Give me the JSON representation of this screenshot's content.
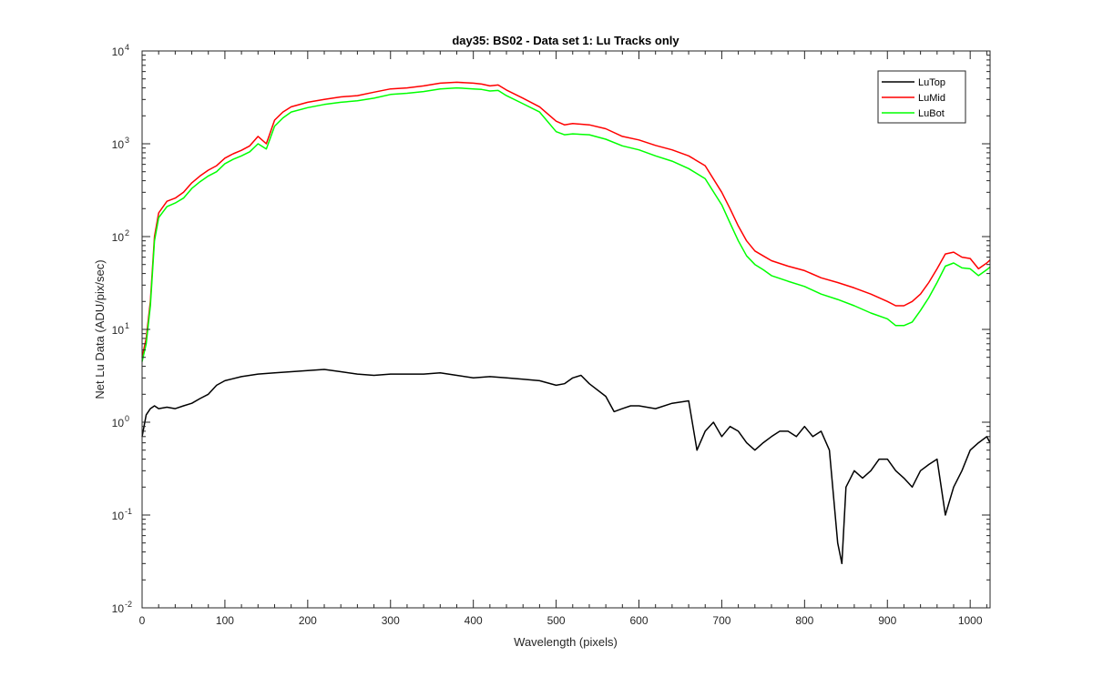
{
  "chart_data": {
    "type": "line",
    "title": "day35: BS02 - Data set 1: Lu Tracks only",
    "xlabel": "Wavelength (pixels)",
    "ylabel": "Net Lu Data (ADU/pix/sec)",
    "xlim": [
      0,
      1024
    ],
    "ylim": [
      0.01,
      10000
    ],
    "yscale": "log",
    "grid": false,
    "legend_position": "top-right",
    "x_ticks": [
      "0",
      "100",
      "200",
      "300",
      "400",
      "500",
      "600",
      "700",
      "800",
      "900",
      "1000"
    ],
    "y_ticks": [
      {
        "base": "10",
        "exp": "-2"
      },
      {
        "base": "10",
        "exp": "-1"
      },
      {
        "base": "10",
        "exp": "0"
      },
      {
        "base": "10",
        "exp": "1"
      },
      {
        "base": "10",
        "exp": "2"
      },
      {
        "base": "10",
        "exp": "3"
      },
      {
        "base": "10",
        "exp": "4"
      }
    ],
    "series": [
      {
        "name": "LuTop",
        "color": "#000000",
        "x": [
          0,
          5,
          10,
          15,
          20,
          30,
          40,
          50,
          60,
          70,
          80,
          90,
          100,
          120,
          140,
          160,
          180,
          200,
          220,
          240,
          260,
          280,
          300,
          320,
          340,
          360,
          380,
          400,
          420,
          440,
          460,
          480,
          500,
          510,
          520,
          530,
          540,
          560,
          570,
          580,
          590,
          600,
          620,
          640,
          660,
          670,
          680,
          690,
          700,
          710,
          720,
          730,
          740,
          750,
          760,
          770,
          780,
          790,
          800,
          810,
          820,
          830,
          840,
          845,
          850,
          860,
          870,
          880,
          890,
          900,
          910,
          920,
          930,
          940,
          950,
          960,
          970,
          980,
          990,
          1000,
          1010,
          1020,
          1024
        ],
        "y": [
          0.7,
          1.2,
          1.4,
          1.5,
          1.4,
          1.45,
          1.4,
          1.5,
          1.6,
          1.8,
          2.0,
          2.5,
          2.8,
          3.1,
          3.3,
          3.4,
          3.5,
          3.6,
          3.7,
          3.5,
          3.3,
          3.2,
          3.3,
          3.3,
          3.3,
          3.4,
          3.2,
          3.0,
          3.1,
          3.0,
          2.9,
          2.8,
          2.5,
          2.6,
          3.0,
          3.2,
          2.6,
          1.9,
          1.3,
          1.4,
          1.5,
          1.5,
          1.4,
          1.6,
          1.7,
          0.5,
          0.8,
          1.0,
          0.7,
          0.9,
          0.8,
          0.6,
          0.5,
          0.6,
          0.7,
          0.8,
          0.8,
          0.7,
          0.9,
          0.7,
          0.8,
          0.5,
          0.05,
          0.03,
          0.2,
          0.3,
          0.25,
          0.3,
          0.4,
          0.4,
          0.3,
          0.25,
          0.2,
          0.3,
          0.35,
          0.4,
          0.1,
          0.2,
          0.3,
          0.5,
          0.6,
          0.7,
          0.6
        ]
      },
      {
        "name": "LuMid",
        "color": "#ff0000",
        "x": [
          0,
          5,
          10,
          15,
          20,
          30,
          40,
          50,
          60,
          70,
          80,
          90,
          100,
          110,
          120,
          130,
          140,
          150,
          160,
          170,
          180,
          200,
          220,
          240,
          260,
          280,
          300,
          320,
          340,
          360,
          380,
          400,
          410,
          420,
          430,
          440,
          460,
          480,
          500,
          510,
          520,
          540,
          560,
          580,
          600,
          620,
          640,
          660,
          680,
          700,
          710,
          720,
          730,
          740,
          750,
          760,
          780,
          800,
          820,
          840,
          860,
          880,
          900,
          910,
          920,
          930,
          940,
          950,
          960,
          970,
          980,
          990,
          1000,
          1010,
          1020,
          1024
        ],
        "y": [
          5,
          8,
          20,
          100,
          180,
          240,
          260,
          300,
          380,
          450,
          520,
          580,
          700,
          780,
          850,
          950,
          1200,
          1000,
          1800,
          2200,
          2500,
          2800,
          3000,
          3200,
          3300,
          3600,
          3900,
          4000,
          4200,
          4500,
          4600,
          4500,
          4400,
          4200,
          4300,
          3800,
          3100,
          2500,
          1750,
          1600,
          1650,
          1600,
          1450,
          1200,
          1100,
          960,
          860,
          740,
          580,
          300,
          200,
          130,
          90,
          70,
          62,
          55,
          48,
          43,
          36,
          32,
          28,
          24,
          20,
          18,
          18,
          20,
          24,
          32,
          45,
          65,
          68,
          60,
          58,
          45,
          52,
          56
        ]
      },
      {
        "name": "LuBot",
        "color": "#00ff00",
        "x": [
          0,
          5,
          10,
          15,
          20,
          30,
          40,
          50,
          60,
          70,
          80,
          90,
          100,
          110,
          120,
          130,
          140,
          150,
          160,
          170,
          180,
          200,
          220,
          240,
          260,
          280,
          300,
          320,
          340,
          360,
          380,
          400,
          410,
          420,
          430,
          440,
          460,
          480,
          500,
          510,
          520,
          540,
          560,
          580,
          600,
          620,
          640,
          660,
          680,
          700,
          710,
          720,
          730,
          740,
          750,
          760,
          780,
          800,
          820,
          840,
          860,
          880,
          900,
          910,
          920,
          930,
          940,
          950,
          960,
          970,
          980,
          990,
          1000,
          1010,
          1020,
          1024
        ],
        "y": [
          4.5,
          7,
          18,
          90,
          160,
          210,
          230,
          260,
          330,
          390,
          450,
          500,
          610,
          680,
          740,
          820,
          1000,
          880,
          1550,
          1900,
          2200,
          2450,
          2650,
          2800,
          2900,
          3100,
          3400,
          3500,
          3650,
          3900,
          4000,
          3900,
          3850,
          3700,
          3750,
          3300,
          2700,
          2200,
          1350,
          1250,
          1280,
          1250,
          1120,
          950,
          860,
          740,
          650,
          540,
          420,
          220,
          140,
          90,
          62,
          50,
          44,
          38,
          33,
          29,
          24,
          21,
          18,
          15,
          13,
          11,
          11,
          12,
          16,
          22,
          32,
          48,
          52,
          46,
          45,
          38,
          44,
          47
        ]
      }
    ]
  }
}
